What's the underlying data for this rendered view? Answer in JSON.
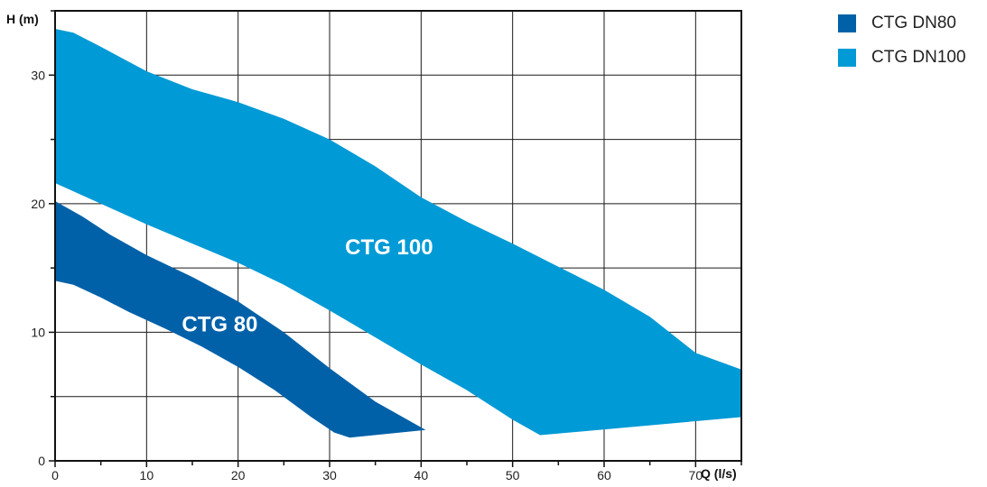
{
  "chart_data": {
    "type": "area",
    "xlabel": "Q (l/s)",
    "ylabel": "H (m)",
    "xlim": [
      0,
      75
    ],
    "ylim": [
      0,
      35
    ],
    "xticks": [
      0,
      10,
      20,
      30,
      40,
      50,
      60,
      70
    ],
    "yticks": [
      0,
      10,
      20,
      30
    ],
    "grid": true,
    "legend_position": "top-right",
    "series": [
      {
        "name": "CTG DN80",
        "label": "CTG 80",
        "label_position": {
          "x": 18,
          "y": 10.5
        },
        "color": "#0061a8",
        "upper": [
          [
            0,
            20.2
          ],
          [
            3,
            19
          ],
          [
            6,
            17.6
          ],
          [
            10,
            16
          ],
          [
            15,
            14.3
          ],
          [
            20,
            12.4
          ],
          [
            25,
            10
          ],
          [
            30,
            7.2
          ],
          [
            35,
            4.6
          ],
          [
            40.5,
            2.4
          ]
        ],
        "lower": [
          [
            0,
            14
          ],
          [
            2,
            13.7
          ],
          [
            5,
            12.7
          ],
          [
            8,
            11.6
          ],
          [
            12,
            10.3
          ],
          [
            16,
            8.9
          ],
          [
            20,
            7.3
          ],
          [
            24,
            5.5
          ],
          [
            28,
            3.4
          ],
          [
            30.5,
            2.2
          ],
          [
            32.2,
            1.8
          ]
        ]
      },
      {
        "name": "CTG DN100",
        "label": "CTG 100",
        "label_position": {
          "x": 36.5,
          "y": 16.5
        },
        "color": "#009ad6",
        "upper": [
          [
            0,
            33.6
          ],
          [
            2,
            33.3
          ],
          [
            5,
            32.2
          ],
          [
            10,
            30.3
          ],
          [
            15,
            28.9
          ],
          [
            20,
            27.9
          ],
          [
            25,
            26.6
          ],
          [
            30,
            25
          ],
          [
            35,
            22.9
          ],
          [
            40,
            20.5
          ],
          [
            45,
            18.6
          ],
          [
            50,
            16.9
          ],
          [
            55,
            15.1
          ],
          [
            60,
            13.3
          ],
          [
            65,
            11.2
          ],
          [
            70,
            8.4
          ],
          [
            75,
            7.1
          ]
        ],
        "lower": [
          [
            0,
            21.6
          ],
          [
            5,
            20
          ],
          [
            10,
            18.4
          ],
          [
            15,
            16.9
          ],
          [
            20,
            15.4
          ],
          [
            25,
            13.7
          ],
          [
            30,
            11.7
          ],
          [
            35,
            9.6
          ],
          [
            40,
            7.5
          ],
          [
            45,
            5.5
          ],
          [
            50,
            3.2
          ],
          [
            53,
            2
          ]
        ],
        "bottom_edge": [
          [
            53,
            2
          ],
          [
            75,
            3.4
          ]
        ]
      }
    ]
  }
}
